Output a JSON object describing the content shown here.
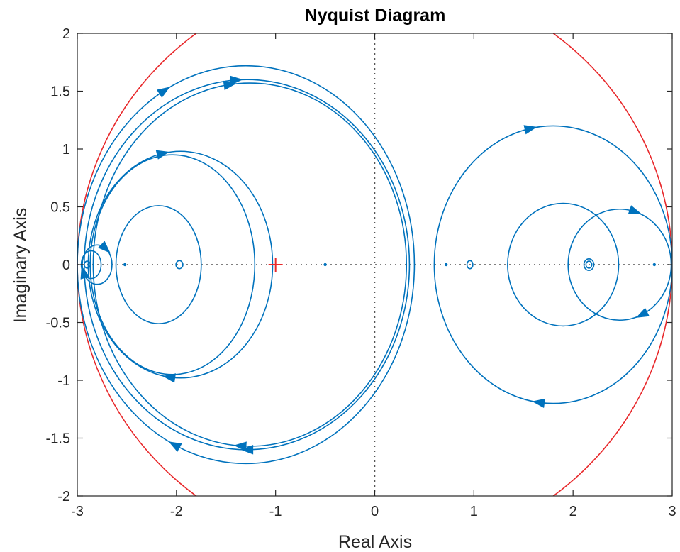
{
  "chart_data": {
    "type": "line",
    "title": "Nyquist Diagram",
    "xlabel": "Real Axis",
    "ylabel": "Imaginary Axis",
    "xlim": [
      -3,
      3
    ],
    "ylim": [
      -2,
      2
    ],
    "xticks": [
      -3,
      -2,
      -1,
      0,
      1,
      2,
      3
    ],
    "yticks": [
      -2,
      -1.5,
      -1,
      -0.5,
      0,
      0.5,
      1,
      1.5,
      2
    ],
    "grid": false,
    "colors": {
      "response": "#0072BD",
      "unit_circle": "#E8282B",
      "critical_point": "#E8282B",
      "zero_lines": "#555555"
    },
    "critical_point": {
      "x": -1,
      "y": 0,
      "marker": "+"
    },
    "circles": [
      {
        "name": "",
        "center": [
          0,
          0
        ],
        "rx": 3.0,
        "ry": 2.5,
        "color": "#E8282B",
        "arrows": []
      },
      {
        "center": [
          -1.3,
          0
        ],
        "rx": 1.7,
        "ry": 1.72,
        "color": "#0072BD",
        "arrows": [
          0.33,
          0.68
        ]
      },
      {
        "center": [
          -1.29,
          0
        ],
        "rx": 1.64,
        "ry": 1.6,
        "color": "#0072BD",
        "arrows": [
          0.26,
          0.75
        ]
      },
      {
        "center": [
          -1.26,
          0
        ],
        "rx": 1.58,
        "ry": 1.57,
        "color": "#0072BD",
        "arrows": [
          0.27,
          0.74
        ]
      },
      {
        "center": [
          -1.96,
          0
        ],
        "rx": 0.93,
        "ry": 0.98,
        "color": "#0072BD",
        "arrows": [
          0.28,
          0.73
        ]
      },
      {
        "center": [
          -2.04,
          0
        ],
        "rx": 0.83,
        "ry": 0.95,
        "color": "#0072BD",
        "arrows": []
      },
      {
        "center": [
          -2.18,
          0
        ],
        "rx": 0.43,
        "ry": 0.51,
        "color": "#0072BD",
        "arrows": []
      },
      {
        "center": [
          -2.8,
          0
        ],
        "rx": 0.15,
        "ry": 0.17,
        "color": "#0072BD",
        "arrows": [
          0.56,
          0.15
        ]
      },
      {
        "center": [
          -2.86,
          0
        ],
        "rx": 0.1,
        "ry": 0.12,
        "color": "#0072BD",
        "arrows": []
      },
      {
        "center": [
          -2.9,
          0
        ],
        "rx": 0.03,
        "ry": 0.03,
        "color": "#0072BD",
        "arrows": []
      },
      {
        "center": [
          -1.97,
          0
        ],
        "rx": 0.035,
        "ry": 0.035,
        "color": "#0072BD",
        "arrows": []
      },
      {
        "center": [
          1.8,
          0
        ],
        "rx": 1.2,
        "ry": 1.2,
        "color": "#0072BD",
        "arrows": [
          0.28,
          0.73
        ]
      },
      {
        "center": [
          1.9,
          0
        ],
        "rx": 0.56,
        "ry": 0.53,
        "color": "#0072BD",
        "arrows": []
      },
      {
        "center": [
          2.47,
          0
        ],
        "rx": 0.52,
        "ry": 0.48,
        "color": "#0072BD",
        "arrows": [
          0.2,
          0.82
        ]
      },
      {
        "center": [
          0.96,
          0
        ],
        "rx": 0.03,
        "ry": 0.035,
        "color": "#0072BD",
        "arrows": []
      },
      {
        "center": [
          2.16,
          0
        ],
        "rx": 0.05,
        "ry": 0.05,
        "color": "#0072BD",
        "arrows": []
      },
      {
        "center": [
          2.16,
          0
        ],
        "rx": 0.03,
        "ry": 0.03,
        "color": "#0072BD",
        "arrows": []
      }
    ],
    "axis_dots": [
      -2.52,
      -0.5,
      0.72,
      2.82
    ]
  }
}
